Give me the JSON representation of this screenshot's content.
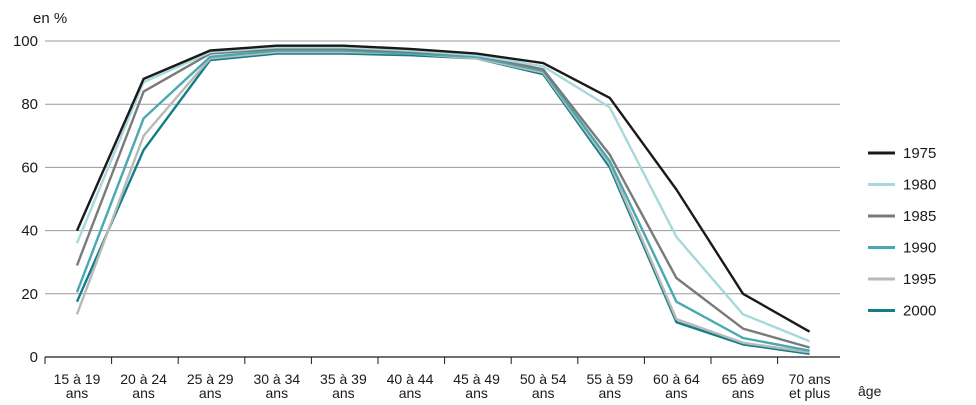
{
  "chart_data": {
    "type": "line",
    "ylabel": "en %",
    "xlabel": "âge",
    "ylim": [
      0,
      100
    ],
    "yticks": [
      0,
      20,
      40,
      60,
      80,
      100
    ],
    "grid": "horizontal",
    "legend_position": "right",
    "categories": [
      [
        "15 à 19",
        "ans"
      ],
      [
        "20 à 24",
        "ans"
      ],
      [
        "25 à 29",
        "ans"
      ],
      [
        "30 à 34",
        "ans"
      ],
      [
        "35 à 39",
        "ans"
      ],
      [
        "40 à 44",
        "ans"
      ],
      [
        "45 à 49",
        "ans"
      ],
      [
        "50 à 54",
        "ans"
      ],
      [
        "55 à 59",
        "ans"
      ],
      [
        "60 à 64",
        "ans"
      ],
      [
        "65 à69",
        "ans"
      ],
      [
        "70 ans",
        "et plus"
      ]
    ],
    "series": [
      {
        "name": "1975",
        "color": "#1a1a1a",
        "values": [
          40,
          88,
          97,
          98.5,
          98.5,
          97.5,
          96,
          93,
          82,
          53,
          20,
          8
        ]
      },
      {
        "name": "1980",
        "color": "#a6d8dc",
        "values": [
          36,
          87,
          96.5,
          98,
          98,
          97,
          95.5,
          92,
          79,
          38,
          13.5,
          5
        ]
      },
      {
        "name": "1985",
        "color": "#7a7a7a",
        "values": [
          29,
          84,
          96,
          97.5,
          97.5,
          96.5,
          95.5,
          91,
          64,
          25,
          9,
          3
        ]
      },
      {
        "name": "1990",
        "color": "#49a9b1",
        "values": [
          20.5,
          75.5,
          95,
          97,
          97,
          96,
          95,
          90.5,
          62,
          17.5,
          6,
          2
        ]
      },
      {
        "name": "1995",
        "color": "#b9b9b9",
        "values": [
          13.5,
          70,
          94.5,
          96.5,
          96.5,
          96,
          94.5,
          90,
          61,
          12,
          4.5,
          1.5
        ]
      },
      {
        "name": "2000",
        "color": "#127e87",
        "values": [
          17.5,
          65.5,
          94,
          96,
          96,
          95.5,
          94.5,
          89.5,
          60,
          11,
          4,
          1
        ]
      }
    ]
  }
}
